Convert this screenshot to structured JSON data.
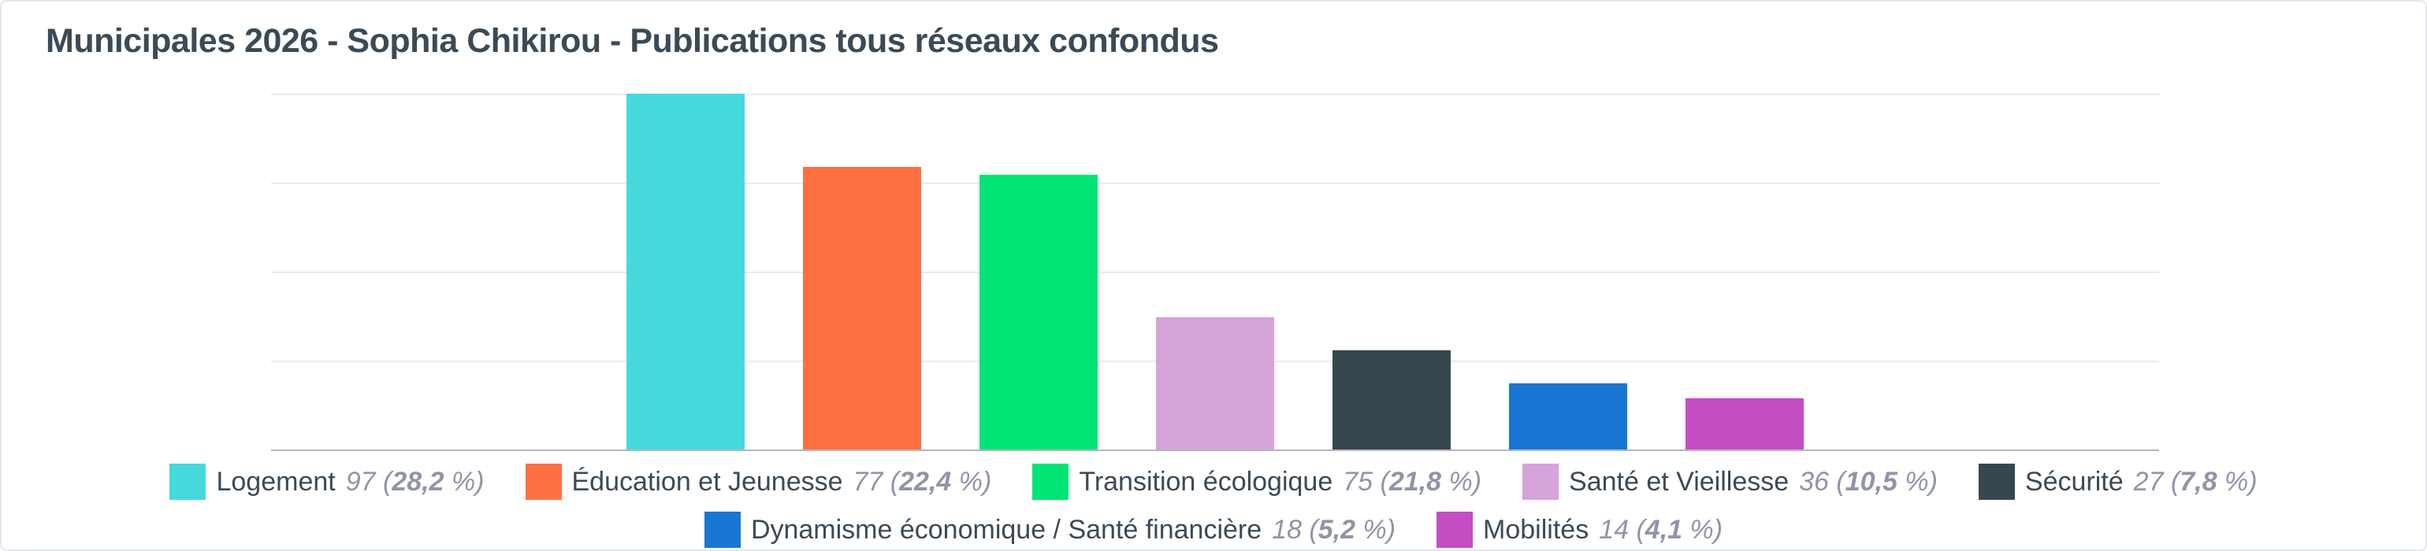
{
  "card": {
    "title": "Municipales 2026 - Sophia Chikirou - Publications tous réseaux confondus"
  },
  "chart_data": {
    "type": "bar",
    "title": "Municipales 2026 - Sophia Chikirou - Publications tous réseaux confondus",
    "categories": [
      "Logement",
      "Éducation et Jeunesse",
      "Transition écologique",
      "Santé et Vieillesse",
      "Sécurité",
      "Dynamisme économique / Santé financière",
      "Mobilités"
    ],
    "values": [
      97,
      77,
      75,
      36,
      27,
      18,
      14
    ],
    "percent_labels": [
      "28,2",
      "22,4",
      "21,8",
      "10,5",
      "7,8",
      "5,2",
      "4,1"
    ],
    "colors": [
      "#45d9de",
      "#ff7043",
      "#00e574",
      "#d4a4db",
      "#37474f",
      "#1976d2",
      "#c44dc4"
    ],
    "ylim": [
      0,
      97
    ],
    "xlabel": "",
    "ylabel": "",
    "grid": "horizontal-only",
    "gridline_count": 5,
    "legend_position": "bottom",
    "legend_rows": [
      [
        0,
        1,
        2,
        3,
        4
      ],
      [
        5,
        6
      ]
    ],
    "legend_value_format": "{count} ({percent} %)"
  },
  "style": {
    "title_color": "#3a4a57",
    "legend_label_color": "#3a4a57",
    "legend_value_color": "#8f94a7",
    "gridline_color": "#e8eaee",
    "axisline_color": "#b2b6c0",
    "card_border_color": "#e4e8ed",
    "background_color": "#ffffff"
  }
}
